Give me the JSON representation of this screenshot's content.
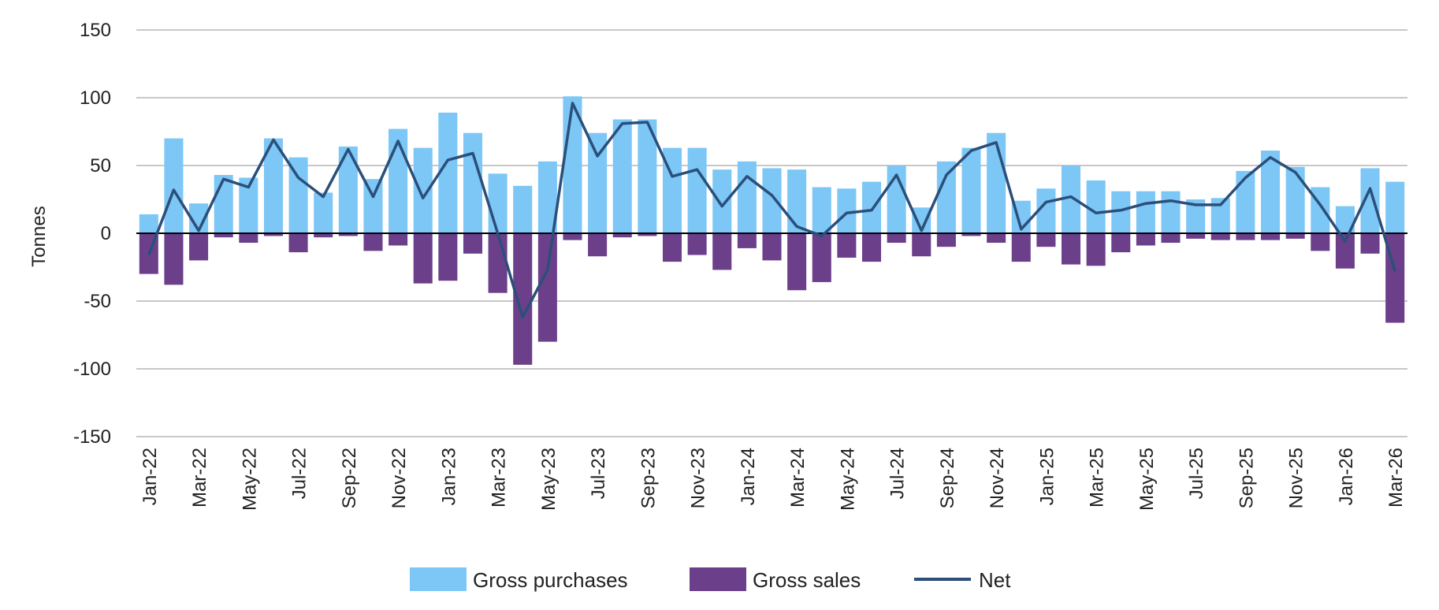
{
  "chart_data": {
    "type": "bar",
    "ylabel": "Tonnes",
    "xlabel": "",
    "title": "",
    "ylim": [
      -150,
      150
    ],
    "yticks": [
      150,
      100,
      50,
      0,
      -50,
      -100,
      -150
    ],
    "grid": true,
    "legend_position": "bottom",
    "categories": [
      "Jan-22",
      "Feb-22",
      "Mar-22",
      "Apr-22",
      "May-22",
      "Jun-22",
      "Jul-22",
      "Aug-22",
      "Sep-22",
      "Oct-22",
      "Nov-22",
      "Dec-22",
      "Jan-23",
      "Feb-23",
      "Mar-23",
      "Apr-23",
      "May-23",
      "Jun-23",
      "Jul-23",
      "Aug-23",
      "Sep-23",
      "Oct-23",
      "Nov-23",
      "Dec-23",
      "Jan-24",
      "Feb-24",
      "Mar-24",
      "Apr-24",
      "May-24",
      "Jun-24",
      "Jul-24",
      "Aug-24",
      "Sep-24",
      "Oct-24",
      "Nov-24",
      "Dec-24",
      "Jan-25",
      "Feb-25",
      "Mar-25",
      "Apr-25",
      "May-25",
      "Jun-25",
      "Jul-25",
      "Aug-25",
      "Sep-25",
      "Oct-25",
      "Nov-25",
      "Dec-25",
      "Jan-26",
      "Feb-26",
      "Mar-26"
    ],
    "tick_labels": [
      "Jan-22",
      "Mar-22",
      "May-22",
      "Jul-22",
      "Sep-22",
      "Nov-22",
      "Jan-23",
      "Mar-23",
      "May-23",
      "Jul-23",
      "Sep-23",
      "Nov-23",
      "Jan-24",
      "Mar-24",
      "May-24",
      "Jul-24",
      "Sep-24",
      "Nov-24",
      "Jan-25",
      "Mar-25",
      "May-25",
      "Jul-25",
      "Sep-25",
      "Nov-25",
      "Jan-26",
      "Mar-26"
    ],
    "series": [
      {
        "name": "Gross purchases",
        "kind": "bar",
        "color": "#7cc7f5",
        "values": [
          14,
          70,
          22,
          43,
          41,
          70,
          56,
          30,
          64,
          40,
          77,
          63,
          89,
          74,
          44,
          35,
          53,
          101,
          74,
          84,
          84,
          63,
          63,
          47,
          53,
          48,
          47,
          34,
          33,
          38,
          50,
          19,
          53,
          63,
          74,
          24,
          33,
          50,
          39,
          31,
          31,
          31,
          25,
          26,
          46,
          61,
          49,
          34,
          20,
          48,
          38
        ]
      },
      {
        "name": "Gross sales",
        "kind": "bar",
        "color": "#6b3f8a",
        "values": [
          -30,
          -38,
          -20,
          -3,
          -7,
          -2,
          -14,
          -3,
          -2,
          -13,
          -9,
          -37,
          -35,
          -15,
          -44,
          -97,
          -80,
          -5,
          -17,
          -3,
          -2,
          -21,
          -16,
          -27,
          -11,
          -20,
          -42,
          -36,
          -18,
          -21,
          -7,
          -17,
          -10,
          -2,
          -7,
          -21,
          -10,
          -23,
          -24,
          -14,
          -9,
          -7,
          -4,
          -5,
          -5,
          -5,
          -4,
          -13,
          -26,
          -15,
          -66
        ]
      },
      {
        "name": "Net",
        "kind": "line",
        "color": "#2b4f7a",
        "values": [
          -16,
          32,
          2,
          40,
          34,
          69,
          41,
          27,
          62,
          27,
          68,
          26,
          54,
          59,
          0,
          -62,
          -27,
          96,
          57,
          81,
          82,
          42,
          47,
          20,
          42,
          28,
          5,
          -2,
          15,
          17,
          43,
          2,
          43,
          61,
          67,
          3,
          23,
          27,
          15,
          17,
          22,
          24,
          21,
          21,
          41,
          56,
          45,
          21,
          -6,
          33,
          -28
        ]
      }
    ]
  }
}
